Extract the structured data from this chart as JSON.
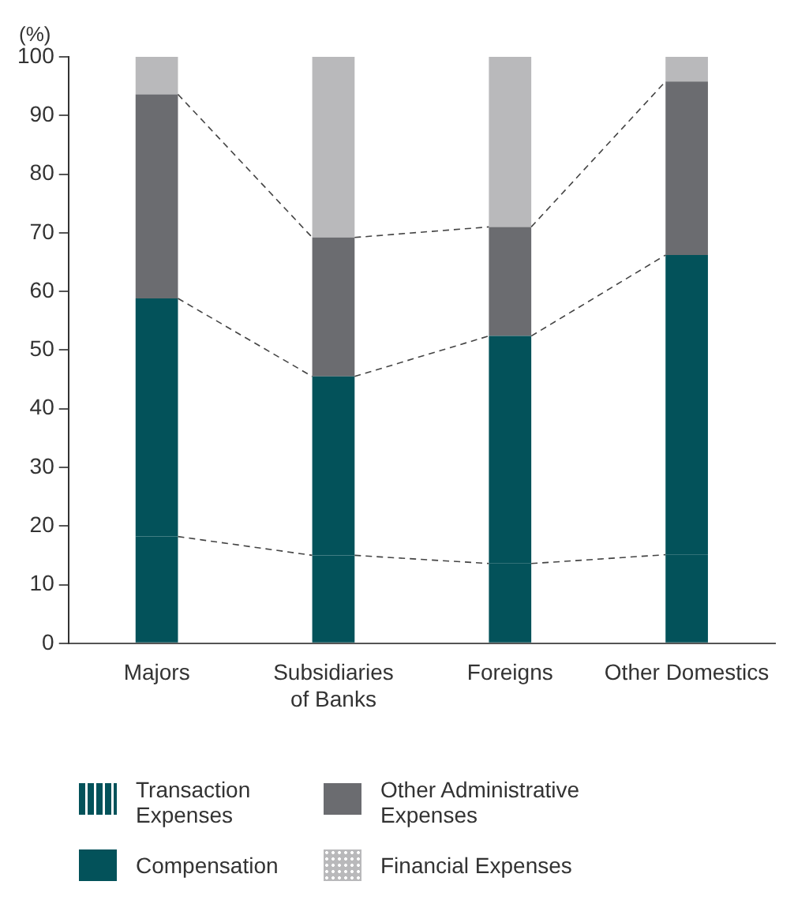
{
  "chart_data": {
    "type": "bar",
    "stacked": true,
    "ylabel": "(%)",
    "categories": [
      "Majors",
      "Subsidiaries of Banks",
      "Foreigns",
      "Other Domestics"
    ],
    "series": [
      {
        "name": "Transaction Expenses",
        "color": "#03525a",
        "values": [
          18.2,
          15,
          13.6,
          15.1
        ]
      },
      {
        "name": "Compensation",
        "color": "#03525a",
        "values": [
          40.6,
          30.5,
          38.8,
          51.1
        ]
      },
      {
        "name": "Other Administrative Expenses",
        "color": "#6b6c70",
        "values": [
          34.8,
          23.7,
          18.6,
          29.6
        ]
      },
      {
        "name": "Financial Expenses",
        "color": "#b9b9bb",
        "values": [
          6.4,
          30.8,
          29,
          4.2
        ]
      }
    ],
    "ylim": [
      0,
      100
    ],
    "yticks": [
      0,
      10,
      20,
      30,
      40,
      50,
      60,
      70,
      80,
      90,
      100
    ],
    "grid": false,
    "legend": "bottom"
  }
}
